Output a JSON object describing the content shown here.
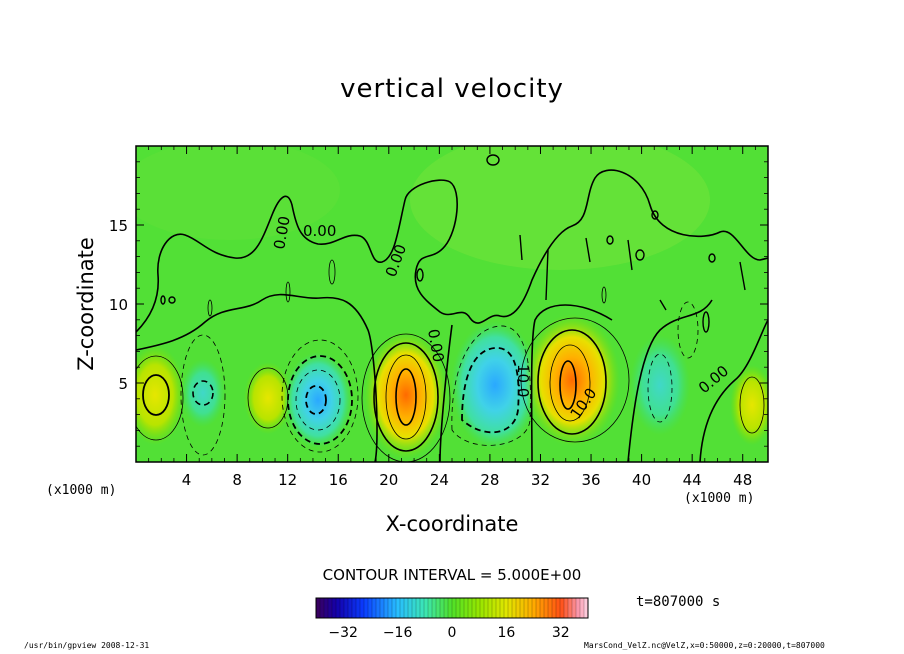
{
  "chart_data": {
    "type": "heatmap",
    "title": "vertical velocity",
    "xlabel": "X-coordinate",
    "ylabel": "Z-coordinate",
    "x_unit": "(x1000 m)",
    "x_ticks": [
      4,
      8,
      12,
      16,
      20,
      24,
      28,
      32,
      36,
      40,
      44,
      48
    ],
    "y_ticks": [
      5,
      10,
      15
    ],
    "xlim": [
      0,
      50
    ],
    "ylim": [
      0,
      20
    ],
    "contour_interval": "CONTOUR INTERVAL = 5.000E+00",
    "contour_labels": [
      "0.00",
      "0.00",
      "0.00",
      "0.00",
      "0.00",
      "10.0",
      "10.0"
    ],
    "cells": [
      {
        "x": 1.5,
        "z": 4.2,
        "value": 14
      },
      {
        "x": 5.3,
        "z": 4.3,
        "value": -8
      },
      {
        "x": 10.5,
        "z": 4.2,
        "value": 8
      },
      {
        "x": 14.2,
        "z": 4.0,
        "value": -22
      },
      {
        "x": 21.5,
        "z": 4.0,
        "value": 28
      },
      {
        "x": 28.5,
        "z": 4.8,
        "value": -20
      },
      {
        "x": 34.0,
        "z": 4.8,
        "value": 30
      },
      {
        "x": 41.5,
        "z": 4.5,
        "value": -10
      },
      {
        "x": 47.0,
        "z": 4.0,
        "value": 6
      }
    ],
    "colorbar": {
      "ticks": [
        -32,
        -16,
        0,
        16,
        32
      ],
      "min": -40,
      "max": 40
    },
    "time": "t=807000 s"
  },
  "footer": {
    "left": "/usr/bin/gpview  2008-12-31",
    "right": "MarsCond_VelZ.nc@VelZ,x=0:50000,z=0:20000,t=807000"
  }
}
